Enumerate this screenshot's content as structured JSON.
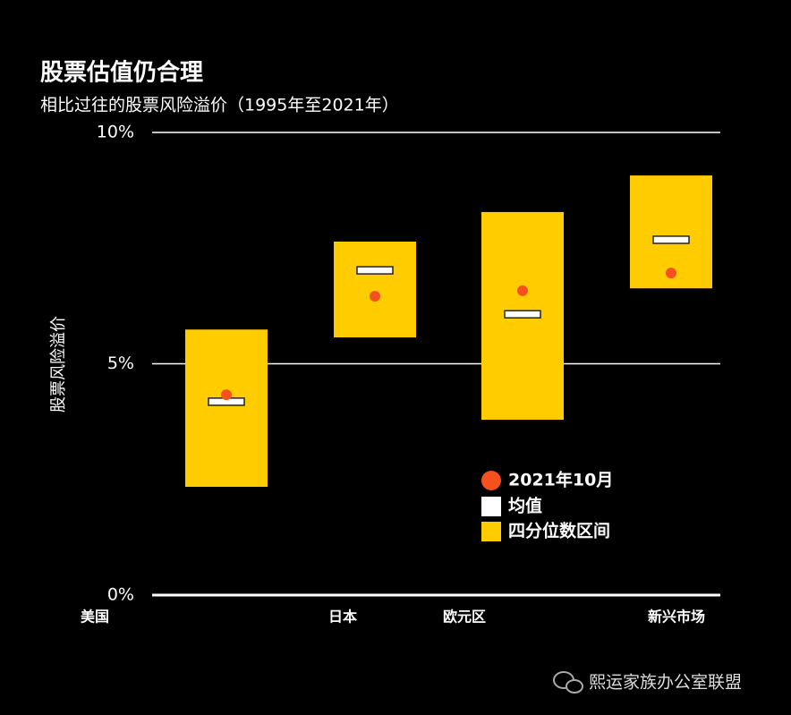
{
  "chart_data": {
    "type": "range",
    "title": "股票估值仍合理",
    "subtitle": "相比过往的股票风险溢价（1995年至2021年）",
    "y_label": "股票风险溢价",
    "categories": [
      "美国",
      "日本",
      "欧元区",
      "新兴市场"
    ],
    "ylim": [
      0,
      10
    ],
    "yticks": [
      {
        "value": 0,
        "label": "0%"
      },
      {
        "value": 5,
        "label": "5%"
      },
      {
        "value": 10,
        "label": "10%"
      }
    ],
    "grid": true,
    "series": [
      {
        "name": "2021年10月",
        "color": "#f5501e",
        "values": [
          4.33,
          6.46,
          6.58,
          6.96
        ]
      },
      {
        "name": "均值",
        "color": "#ffffff",
        "values": [
          4.18,
          7.02,
          6.07,
          7.68
        ]
      },
      {
        "name": "四分位数区间",
        "color": "#ffcc00",
        "low": [
          2.34,
          5.57,
          3.79,
          6.63
        ],
        "high": [
          5.74,
          7.64,
          8.28,
          9.07
        ]
      }
    ]
  },
  "watermark": "熙运家族办公室联盟"
}
